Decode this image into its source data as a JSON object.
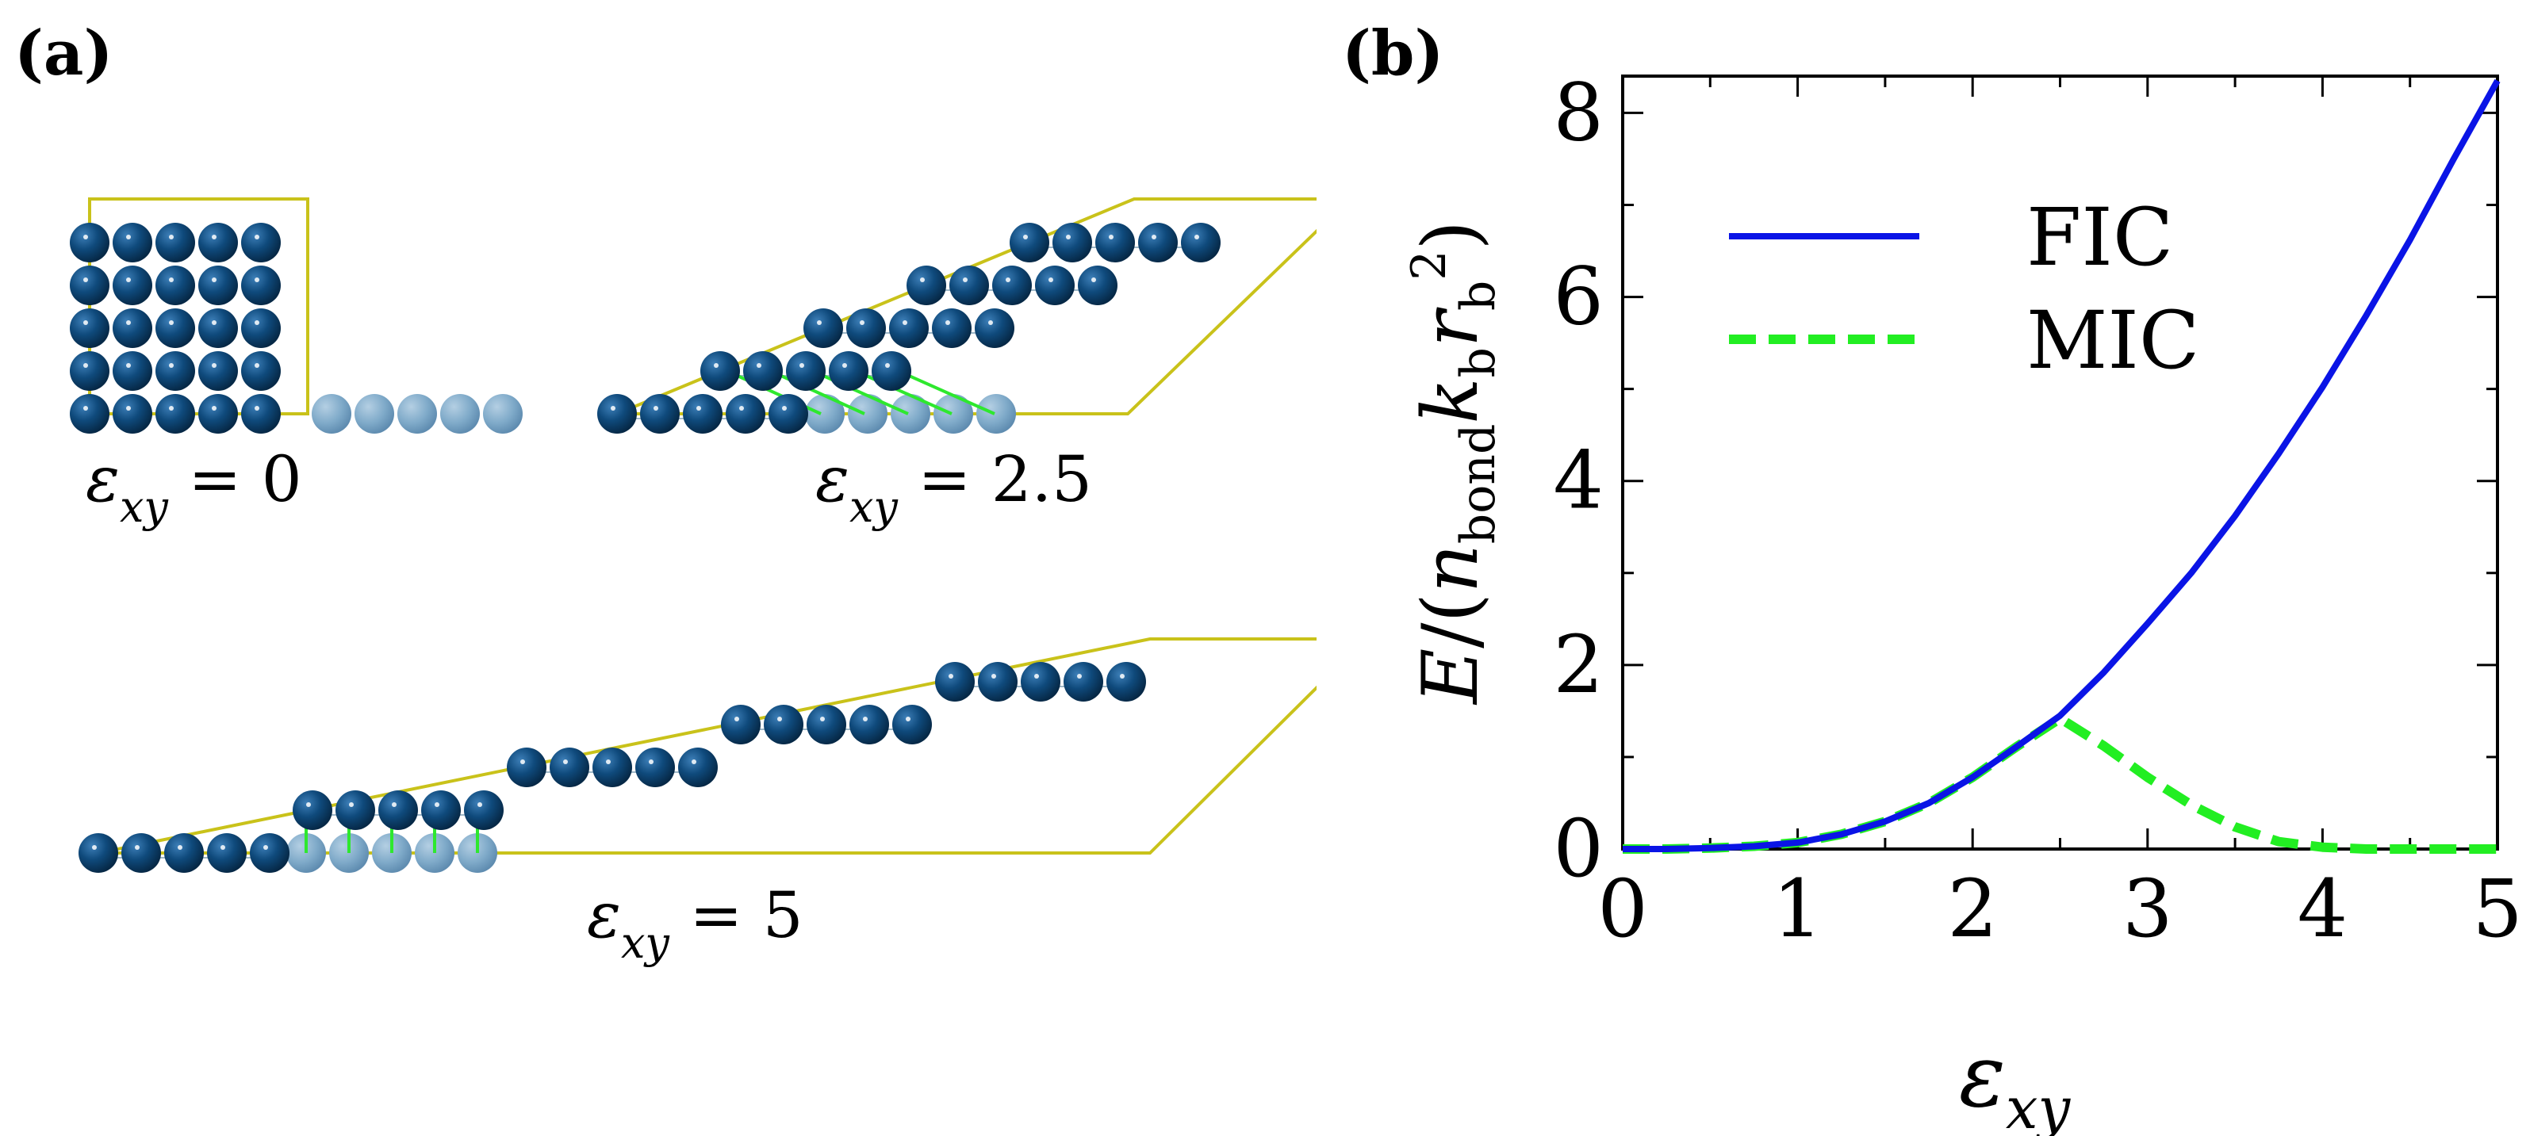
{
  "panel_labels": {
    "a": "(a)",
    "b": "(b)"
  },
  "panel_a": {
    "configs": [
      {
        "symbol": "ε",
        "subscript": "xy",
        "equals": " = ",
        "value": "0"
      },
      {
        "symbol": "ε",
        "subscript": "xy",
        "equals": " = ",
        "value": "2.5"
      },
      {
        "symbol": "ε",
        "subscript": "xy",
        "equals": " = ",
        "value": "5"
      }
    ],
    "colors": {
      "atom": "#0f4a7c",
      "image_atom": "#7faac9",
      "cell": "#c9c21a",
      "bond": "#2ee82e"
    }
  },
  "chart_data": {
    "type": "line",
    "xlabel_symbol": "ε",
    "xlabel_subscript": "xy",
    "ylabel": "E/(n_bond k_b r_b^2)",
    "xlim": [
      0,
      5
    ],
    "ylim": [
      0,
      8.4
    ],
    "xticks": [
      "0",
      "1",
      "2",
      "3",
      "4",
      "5"
    ],
    "yticks": [
      "0",
      "2",
      "4",
      "6",
      "8"
    ],
    "series": [
      {
        "name": "FIC",
        "style": "solid",
        "color": "#0a14e6",
        "x": [
          0,
          0.25,
          0.5,
          0.75,
          1.0,
          1.25,
          1.5,
          1.75,
          2.0,
          2.25,
          2.5,
          2.75,
          3.0,
          3.25,
          3.5,
          3.75,
          4.0,
          4.25,
          4.5,
          4.75,
          5.0
        ],
        "y": [
          0.0,
          0.0,
          0.01,
          0.03,
          0.07,
          0.16,
          0.3,
          0.5,
          0.78,
          1.11,
          1.45,
          1.92,
          2.45,
          3.0,
          3.62,
          4.3,
          5.02,
          5.8,
          6.62,
          7.5,
          8.35
        ]
      },
      {
        "name": "MIC",
        "style": "dashed",
        "color": "#22ee22",
        "x": [
          0,
          0.25,
          0.5,
          0.75,
          1.0,
          1.25,
          1.5,
          1.75,
          2.0,
          2.25,
          2.5,
          2.75,
          3.0,
          3.25,
          3.5,
          3.75,
          4.0,
          4.25,
          4.5,
          4.75,
          5.0
        ],
        "y": [
          0.0,
          0.0,
          0.01,
          0.03,
          0.07,
          0.16,
          0.3,
          0.5,
          0.78,
          1.11,
          1.42,
          1.12,
          0.78,
          0.48,
          0.24,
          0.08,
          0.02,
          0.0,
          0.0,
          0.0,
          0.0
        ]
      }
    ],
    "legend": {
      "position": "upper-left",
      "entries": [
        "FIC",
        "MIC"
      ]
    }
  }
}
